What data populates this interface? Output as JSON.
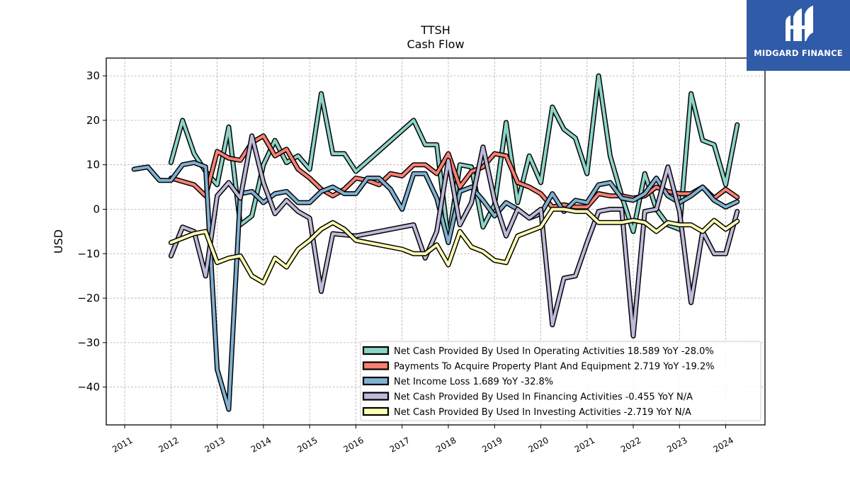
{
  "chart_data": {
    "type": "line",
    "title": "TTSH",
    "subtitle": "Cash Flow",
    "xlabel": "",
    "ylabel": "USD",
    "xlim": [
      2010.6,
      2024.85
    ],
    "ylim": [
      -48.5,
      34
    ],
    "yticks": [
      30,
      20,
      10,
      0,
      -10,
      -20,
      -30,
      -40
    ],
    "ytick_labels": [
      "30",
      "20",
      "10",
      "0",
      "−10",
      "−20",
      "−30",
      "−40"
    ],
    "xticks": [
      2011,
      2012,
      2013,
      2014,
      2015,
      2016,
      2017,
      2018,
      2019,
      2020,
      2021,
      2022,
      2023,
      2024
    ],
    "xtick_labels": [
      "2011",
      "2012",
      "2013",
      "2014",
      "2015",
      "2016",
      "2017",
      "2018",
      "2019",
      "2020",
      "2021",
      "2022",
      "2023",
      "2024"
    ],
    "grid": true,
    "legend_position": "bottom-right",
    "series": [
      {
        "name": "Net Cash Provided By Used In Operating Activities  18.589 YoY -28.0%",
        "color": "#8dd3c7",
        "points": [
          [
            2012.0,
            10.5
          ],
          [
            2012.25,
            20
          ],
          [
            2012.5,
            12.5
          ],
          [
            2012.75,
            8.5
          ],
          [
            2013.0,
            5.5
          ],
          [
            2013.25,
            18.5
          ],
          [
            2013.5,
            -3.5
          ],
          [
            2013.75,
            -1.5
          ],
          [
            2014.0,
            10
          ],
          [
            2014.25,
            15.5
          ],
          [
            2014.5,
            10.5
          ],
          [
            2014.75,
            12
          ],
          [
            2015.0,
            9
          ],
          [
            2015.25,
            26
          ],
          [
            2015.5,
            12.5
          ],
          [
            2015.75,
            12.5
          ],
          [
            2016.0,
            8.5
          ],
          [
            2017.25,
            20
          ],
          [
            2017.5,
            14.5
          ],
          [
            2017.75,
            14.5
          ],
          [
            2018.0,
            -7
          ],
          [
            2018.25,
            10
          ],
          [
            2018.5,
            9.5
          ],
          [
            2018.75,
            -4
          ],
          [
            2019.0,
            1
          ],
          [
            2019.25,
            19.5
          ],
          [
            2019.5,
            1.5
          ],
          [
            2019.75,
            12
          ],
          [
            2020.0,
            6
          ],
          [
            2020.25,
            23
          ],
          [
            2020.5,
            18
          ],
          [
            2020.75,
            16
          ],
          [
            2021.0,
            8
          ],
          [
            2021.25,
            30
          ],
          [
            2021.5,
            12
          ],
          [
            2021.75,
            3
          ],
          [
            2022.0,
            -5
          ],
          [
            2022.25,
            8
          ],
          [
            2022.5,
            0
          ],
          [
            2022.75,
            -3.5
          ],
          [
            2023.0,
            -4.5
          ],
          [
            2023.25,
            26
          ],
          [
            2023.5,
            15.5
          ],
          [
            2023.75,
            14.5
          ],
          [
            2024.0,
            5.5
          ],
          [
            2024.25,
            19
          ]
        ]
      },
      {
        "name": "Payments To Acquire Property Plant And Equipment  2.719 YoY -19.2%",
        "color": "#fb8072",
        "points": [
          [
            2012.0,
            7
          ],
          [
            2012.5,
            5.5
          ],
          [
            2012.75,
            3
          ],
          [
            2013.0,
            13
          ],
          [
            2013.25,
            11.5
          ],
          [
            2013.5,
            11
          ],
          [
            2013.75,
            15
          ],
          [
            2014.0,
            16.5
          ],
          [
            2014.25,
            12
          ],
          [
            2014.5,
            13.5
          ],
          [
            2014.75,
            9
          ],
          [
            2015.0,
            7
          ],
          [
            2015.25,
            4.5
          ],
          [
            2015.5,
            3
          ],
          [
            2015.75,
            4.5
          ],
          [
            2016.0,
            7
          ],
          [
            2016.25,
            6.5
          ],
          [
            2016.5,
            5.5
          ],
          [
            2016.75,
            8
          ],
          [
            2017.0,
            7.5
          ],
          [
            2017.25,
            10
          ],
          [
            2017.5,
            10
          ],
          [
            2017.75,
            8
          ],
          [
            2018.0,
            12.5
          ],
          [
            2018.25,
            5
          ],
          [
            2018.5,
            8.5
          ],
          [
            2018.75,
            9.5
          ],
          [
            2019.0,
            12.5
          ],
          [
            2019.25,
            12
          ],
          [
            2019.5,
            6
          ],
          [
            2019.75,
            5
          ],
          [
            2020.0,
            3.5
          ],
          [
            2020.25,
            0.5
          ],
          [
            2020.5,
            1
          ],
          [
            2020.75,
            0.5
          ],
          [
            2021.0,
            0.5
          ],
          [
            2021.25,
            3.5
          ],
          [
            2021.5,
            3
          ],
          [
            2021.75,
            3
          ],
          [
            2022.0,
            2.5
          ],
          [
            2022.25,
            3
          ],
          [
            2022.5,
            5
          ],
          [
            2022.75,
            4
          ],
          [
            2023.0,
            3.5
          ],
          [
            2023.25,
            3.5
          ],
          [
            2023.5,
            5
          ],
          [
            2023.75,
            2.5
          ],
          [
            2024.0,
            4.5
          ],
          [
            2024.25,
            2.7
          ]
        ]
      },
      {
        "name": "Net Income Loss  1.689 YoY -32.8%",
        "color": "#80b1d3",
        "points": [
          [
            2011.2,
            9
          ],
          [
            2011.5,
            9.5
          ],
          [
            2011.75,
            6.5
          ],
          [
            2012.0,
            6.5
          ],
          [
            2012.25,
            10
          ],
          [
            2012.5,
            10.5
          ],
          [
            2012.75,
            9.5
          ],
          [
            2013.0,
            -36
          ],
          [
            2013.25,
            -45
          ],
          [
            2013.5,
            3.5
          ],
          [
            2013.75,
            4
          ],
          [
            2014.0,
            1.5
          ],
          [
            2014.25,
            3.5
          ],
          [
            2014.5,
            4
          ],
          [
            2014.75,
            1.5
          ],
          [
            2015.0,
            1.5
          ],
          [
            2015.25,
            4
          ],
          [
            2015.5,
            5
          ],
          [
            2015.75,
            3.5
          ],
          [
            2016.0,
            3.5
          ],
          [
            2016.25,
            7
          ],
          [
            2016.5,
            7
          ],
          [
            2016.75,
            4.5
          ],
          [
            2017.0,
            0
          ],
          [
            2017.25,
            8
          ],
          [
            2017.5,
            8
          ],
          [
            2017.75,
            2.5
          ],
          [
            2018.0,
            -7.5
          ],
          [
            2018.25,
            4
          ],
          [
            2018.5,
            5
          ],
          [
            2018.75,
            2
          ],
          [
            2019.0,
            -1.5
          ],
          [
            2019.25,
            1.5
          ],
          [
            2019.5,
            0
          ],
          [
            2019.75,
            -2
          ],
          [
            2020.0,
            -1
          ],
          [
            2020.25,
            3.5
          ],
          [
            2020.5,
            -0.5
          ],
          [
            2020.75,
            2
          ],
          [
            2021.0,
            1.5
          ],
          [
            2021.25,
            5.5
          ],
          [
            2021.5,
            6
          ],
          [
            2021.75,
            2.5
          ],
          [
            2022.0,
            2
          ],
          [
            2022.25,
            3.5
          ],
          [
            2022.5,
            7
          ],
          [
            2022.75,
            3
          ],
          [
            2023.0,
            1.5
          ],
          [
            2023.25,
            3
          ],
          [
            2023.5,
            5
          ],
          [
            2023.75,
            2
          ],
          [
            2024.0,
            0.5
          ],
          [
            2024.25,
            1.7
          ]
        ]
      },
      {
        "name": "Net Cash Provided By Used In Financing Activities  -0.455 YoY N/A",
        "color": "#bebada",
        "points": [
          [
            2012.0,
            -10.5
          ],
          [
            2012.25,
            -4
          ],
          [
            2012.5,
            -5
          ],
          [
            2012.75,
            -15
          ],
          [
            2013.0,
            3
          ],
          [
            2013.25,
            6
          ],
          [
            2013.5,
            2.5
          ],
          [
            2013.75,
            16.5
          ],
          [
            2014.0,
            6
          ],
          [
            2014.25,
            -1
          ],
          [
            2014.5,
            2
          ],
          [
            2014.75,
            -0.5
          ],
          [
            2015.0,
            -2
          ],
          [
            2015.25,
            -18.5
          ],
          [
            2015.5,
            -5.5
          ],
          [
            2016.0,
            -6
          ],
          [
            2016.5,
            -5
          ],
          [
            2017.0,
            -4
          ],
          [
            2017.25,
            -3.5
          ],
          [
            2017.5,
            -11
          ],
          [
            2017.75,
            -5
          ],
          [
            2018.0,
            11
          ],
          [
            2018.25,
            -3.5
          ],
          [
            2018.5,
            1.5
          ],
          [
            2018.75,
            14
          ],
          [
            2019.0,
            2
          ],
          [
            2019.25,
            -6
          ],
          [
            2019.5,
            0
          ],
          [
            2019.75,
            -2
          ],
          [
            2020.0,
            0
          ],
          [
            2020.25,
            -26
          ],
          [
            2020.5,
            -15.5
          ],
          [
            2020.75,
            -15
          ],
          [
            2021.0,
            -7.5
          ],
          [
            2021.25,
            -0.5
          ],
          [
            2021.5,
            0
          ],
          [
            2021.75,
            0
          ],
          [
            2022.0,
            -28.5
          ],
          [
            2022.25,
            -0.5
          ],
          [
            2022.5,
            0
          ],
          [
            2022.75,
            9.5
          ],
          [
            2023.0,
            -0.5
          ],
          [
            2023.25,
            -21
          ],
          [
            2023.5,
            -5
          ],
          [
            2023.75,
            -10
          ],
          [
            2024.0,
            -10
          ],
          [
            2024.25,
            -0.5
          ]
        ]
      },
      {
        "name": "Net Cash Provided By Used In Investing Activities  -2.719 YoY N/A",
        "color": "#ffffb3",
        "points": [
          [
            2012.0,
            -7.5
          ],
          [
            2012.25,
            -6.5
          ],
          [
            2012.5,
            -5.5
          ],
          [
            2012.75,
            -5
          ],
          [
            2013.0,
            -12
          ],
          [
            2013.25,
            -11
          ],
          [
            2013.5,
            -10.5
          ],
          [
            2013.75,
            -15
          ],
          [
            2014.0,
            -16.5
          ],
          [
            2014.25,
            -11
          ],
          [
            2014.5,
            -13
          ],
          [
            2014.75,
            -9
          ],
          [
            2015.0,
            -7
          ],
          [
            2015.25,
            -4.5
          ],
          [
            2015.5,
            -3
          ],
          [
            2015.75,
            -4.5
          ],
          [
            2016.0,
            -7
          ],
          [
            2016.5,
            -8
          ],
          [
            2017.0,
            -9
          ],
          [
            2017.25,
            -10
          ],
          [
            2017.5,
            -10
          ],
          [
            2017.75,
            -8
          ],
          [
            2018.0,
            -12.5
          ],
          [
            2018.25,
            -5
          ],
          [
            2018.5,
            -8.5
          ],
          [
            2018.75,
            -9.5
          ],
          [
            2019.0,
            -11.5
          ],
          [
            2019.25,
            -12
          ],
          [
            2019.5,
            -6
          ],
          [
            2019.75,
            -5
          ],
          [
            2020.0,
            -4
          ],
          [
            2020.25,
            0
          ],
          [
            2020.5,
            0
          ],
          [
            2020.75,
            -0.5
          ],
          [
            2021.0,
            -0.5
          ],
          [
            2021.25,
            -3
          ],
          [
            2021.5,
            -3
          ],
          [
            2021.75,
            -3
          ],
          [
            2022.0,
            -2.5
          ],
          [
            2022.25,
            -3
          ],
          [
            2022.5,
            -5
          ],
          [
            2022.75,
            -3
          ],
          [
            2023.0,
            -3.5
          ],
          [
            2023.25,
            -3.5
          ],
          [
            2023.5,
            -5
          ],
          [
            2023.75,
            -2.5
          ],
          [
            2024.0,
            -4.5
          ],
          [
            2024.25,
            -2.7
          ]
        ]
      }
    ]
  },
  "logo": {
    "text": "MIDGARD FINANCE"
  }
}
